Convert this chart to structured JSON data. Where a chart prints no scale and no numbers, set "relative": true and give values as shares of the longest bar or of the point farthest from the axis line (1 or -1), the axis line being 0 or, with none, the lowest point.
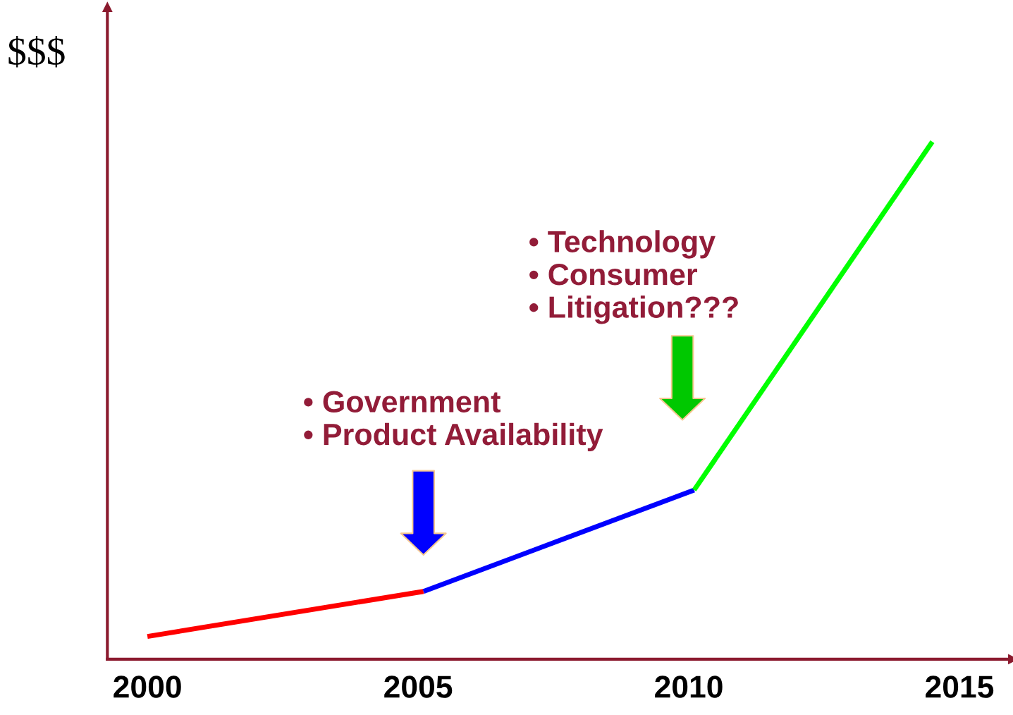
{
  "chart_data": {
    "type": "line",
    "relative": true,
    "ylabel": "$$$",
    "xlim": [
      1999.26,
      2015.99
    ],
    "xticks": [
      2000,
      2005,
      2010,
      2015
    ],
    "series": [
      {
        "color": "#ff0000",
        "x": [
          2000,
          2005.1
        ],
        "values": [
          0.044,
          0.131
        ]
      },
      {
        "color": "#0000ff",
        "x": [
          2005.1,
          2010.1
        ],
        "values": [
          0.131,
          0.327
        ]
      },
      {
        "color": "#00ff00",
        "x": [
          2010.1,
          2014.5
        ],
        "values": [
          0.327,
          1.0
        ]
      }
    ],
    "annotations": [
      "• Government\n• Product Availability",
      "• Technology\n• Consumer\n• Litigation???"
    ],
    "grid": false,
    "legend": false
  }
}
